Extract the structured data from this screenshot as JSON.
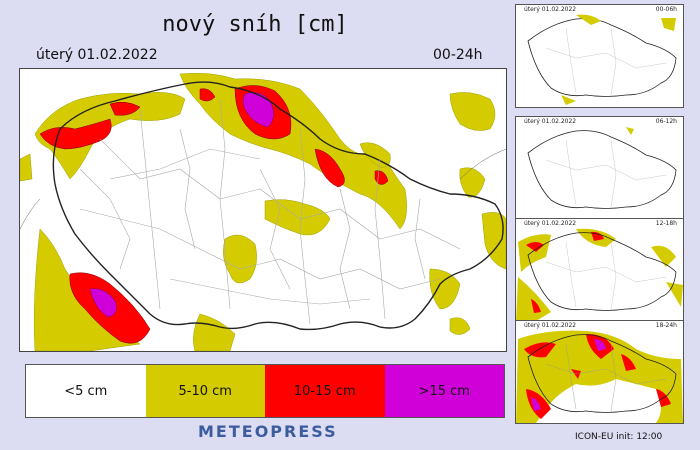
{
  "map": {
    "title": "nový sníh [cm]",
    "date": "úterý 01.02.2022",
    "time_range": "00-24h"
  },
  "legend": [
    {
      "label": "<5 cm",
      "color": "#ffffff"
    },
    {
      "label": "5-10 cm",
      "color": "#d4cc00"
    },
    {
      "label": "10-15 cm",
      "color": "#ff0000"
    },
    {
      "label": ">15 cm",
      "color": "#d000d8"
    }
  ],
  "branding": {
    "logo": "METEOPRESS",
    "model": "ICON-EU",
    "init_label": "init:",
    "init_time": "12:00"
  },
  "thumbnails": [
    {
      "date": "úterý 01.02.2022",
      "time_range": "00-06h"
    },
    {
      "date": "úterý 01.02.2022",
      "time_range": "06-12h"
    },
    {
      "date": "úterý 01.02.2022",
      "time_range": "12-18h"
    },
    {
      "date": "úterý 01.02.2022",
      "time_range": "18-24h"
    }
  ]
}
